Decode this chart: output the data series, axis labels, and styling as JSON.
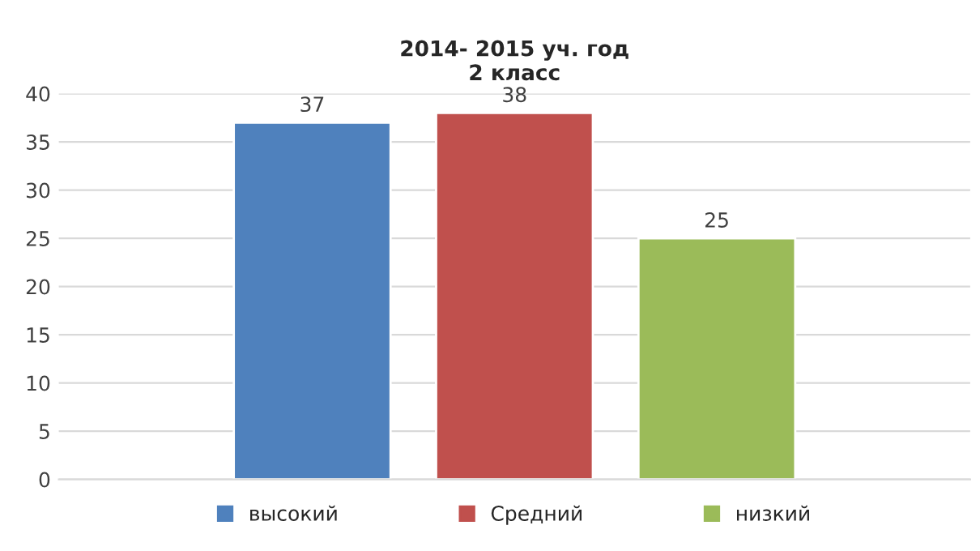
{
  "chart_data": {
    "type": "bar",
    "title": "2014- 2015 уч. год\n2 класс",
    "categories": [
      null
    ],
    "series": [
      {
        "name": "высокий",
        "color": "#4f81bd",
        "values": [
          37
        ]
      },
      {
        "name": "Средний",
        "color": "#c0504d",
        "values": [
          38
        ]
      },
      {
        "name": "низкий",
        "color": "#9bbb59",
        "values": [
          25
        ]
      }
    ],
    "ylim": [
      0,
      40
    ],
    "yticks": [
      0,
      5,
      10,
      15,
      20,
      25,
      30,
      35,
      40
    ],
    "grid": "y",
    "legend": "bottom",
    "data_labels": true
  }
}
